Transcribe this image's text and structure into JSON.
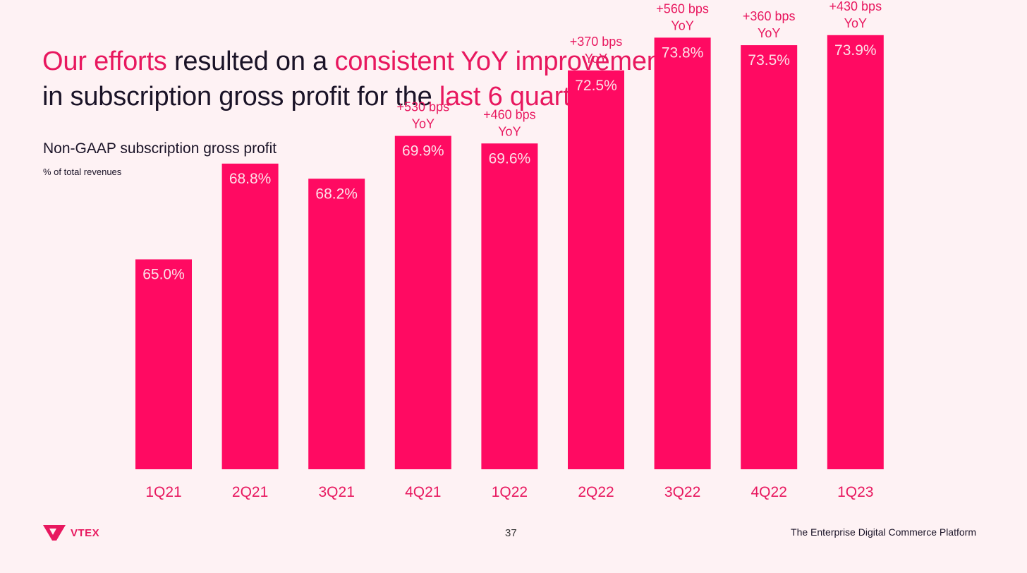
{
  "headline": {
    "line1": [
      {
        "text": "Our efforts",
        "accent": true
      },
      {
        "text": " resulted on a ",
        "accent": false
      },
      {
        "text": "consistent YoY improvement",
        "accent": true
      }
    ],
    "line2": [
      {
        "text": "in subscription gross profit for the ",
        "accent": false
      },
      {
        "text": "last 6 quarters",
        "accent": true
      }
    ]
  },
  "chart_data": {
    "type": "bar",
    "title": "Non-GAAP subscription gross profit",
    "subtitle": "% of total revenues",
    "categories": [
      "1Q21",
      "2Q21",
      "3Q21",
      "4Q21",
      "1Q22",
      "2Q22",
      "3Q22",
      "4Q22",
      "1Q23"
    ],
    "values": [
      65.0,
      68.8,
      68.2,
      69.9,
      69.6,
      72.5,
      73.8,
      73.5,
      73.9
    ],
    "data_labels": [
      "65.0%",
      "68.8%",
      "68.2%",
      "69.9%",
      "69.6%",
      "72.5%",
      "73.8%",
      "73.5%",
      "73.9%"
    ],
    "annotations": [
      null,
      null,
      null,
      {
        "line1": "+530 bps",
        "line2": "YoY"
      },
      {
        "line1": "+460 bps",
        "line2": "YoY"
      },
      {
        "line1": "+370 bps",
        "line2": "YoY"
      },
      {
        "line1": "+560 bps",
        "line2": "YoY"
      },
      {
        "line1": "+360 bps",
        "line2": "YoY"
      },
      {
        "line1": "+430 bps",
        "line2": "YoY"
      }
    ],
    "bar_color": "#ff0a62",
    "label_color": "#fde0e8",
    "category_color": "#e8185f",
    "annotation_color": "#e8185f"
  },
  "footer": {
    "brand": "VTEX",
    "page": "37",
    "tagline": "The Enterprise Digital Commerce Platform"
  }
}
